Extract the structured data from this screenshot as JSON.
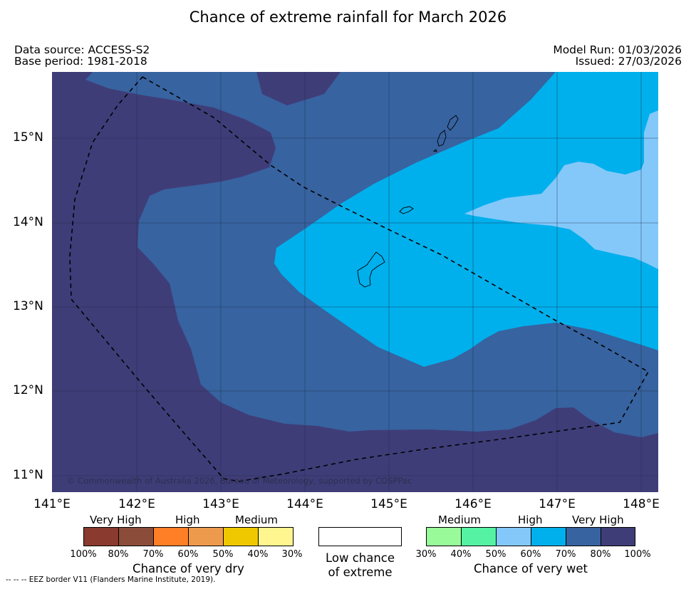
{
  "title": "Chance of extreme rainfall for March 2026",
  "meta": {
    "data_source": "Data source: ACCESS-S2",
    "base_period": "Base period: 1981-2018",
    "model_run": "Model Run: 01/03/2026",
    "issued": "Issued: 27/03/2026"
  },
  "map": {
    "lat_labels": [
      "15°N",
      "14°N",
      "13°N",
      "12°N",
      "11°N"
    ],
    "lon_labels": [
      "141°E",
      "142°E",
      "143°E",
      "144°E",
      "145°E",
      "146°E",
      "147°E",
      "148°E"
    ],
    "copyright": "© Commonwealth of Australia 2026, Bureau of Meteorology, supported by COSPPac",
    "colors": {
      "very_high_80_100": "#3f3d78",
      "very_high_70_80": "#3763a0",
      "high_60_70": "#00b0ec",
      "high_50_60": "#84c8fa"
    }
  },
  "legend_dry": {
    "headers": [
      "Very High",
      "High",
      "Medium"
    ],
    "ticks": [
      "100%",
      "80%",
      "70%",
      "60%",
      "50%",
      "40%",
      "30%"
    ],
    "title": "Chance of very dry",
    "colors": [
      "#8b3a2f",
      "#8c4c3a",
      "#ff7f27",
      "#ee9a4d",
      "#f0c800",
      "#fff68f"
    ]
  },
  "legend_low": {
    "line1": "Low chance",
    "line2": "of extreme"
  },
  "legend_wet": {
    "headers": [
      "Medium",
      "High",
      "Very High"
    ],
    "ticks": [
      "30%",
      "40%",
      "50%",
      "60%",
      "70%",
      "80%",
      "100%"
    ],
    "title": "Chance of very wet",
    "colors": [
      "#99fa99",
      "#55f2a4",
      "#84c8fa",
      "#00b0ec",
      "#3763a0",
      "#3f3d78"
    ]
  },
  "footer": "--  --  -- EEZ border V11 (Flanders Marine Institute, 2019)."
}
